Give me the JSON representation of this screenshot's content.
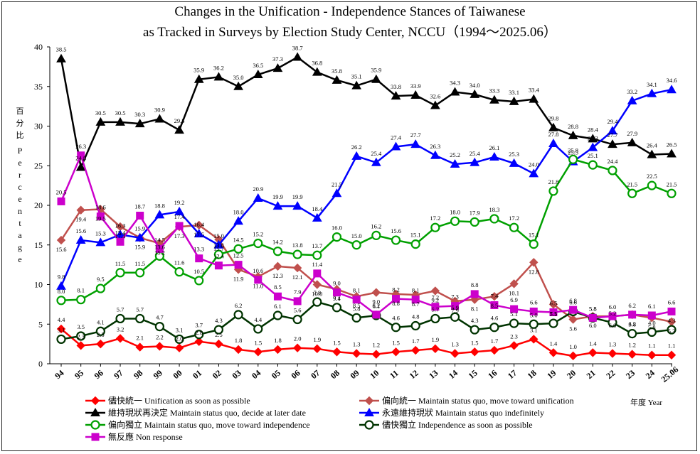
{
  "chart_data": {
    "type": "line",
    "title_line1": "Changes in the Unification - Independence Stances of Taiwanese",
    "title_line2": "as Tracked in Surveys by Election Study Center, NCCU（1994～2025.06）",
    "ylabel_zh": [
      "百",
      "分",
      "比"
    ],
    "ylabel_en": [
      "P",
      "e",
      "r",
      "c",
      "e",
      "n",
      "t",
      "a",
      "g",
      "e"
    ],
    "xlabel": "年度 Year",
    "ylim": [
      0,
      40
    ],
    "yticks": [
      "0",
      "5",
      "10",
      "15",
      "20",
      "25",
      "30",
      "35",
      "40"
    ],
    "categories": [
      "94",
      "95",
      "96",
      "97",
      "98",
      "99",
      "00",
      "01",
      "02",
      "03",
      "04",
      "05",
      "06",
      "07",
      "08",
      "09",
      "10",
      "11",
      "12",
      "13",
      "14",
      "15",
      "16",
      "17",
      "18",
      "19",
      "20",
      "21",
      "22",
      "23",
      "24",
      "25.06"
    ],
    "series": [
      {
        "name": "儘快統一 Unification as soon as possible",
        "color": "#ff0000",
        "marker": "diamond",
        "values": [
          4.4,
          2.3,
          2.5,
          3.2,
          2.1,
          2.2,
          2.0,
          2.8,
          2.5,
          1.8,
          1.5,
          1.8,
          2.0,
          1.9,
          1.5,
          1.3,
          1.2,
          1.5,
          1.7,
          1.9,
          1.3,
          1.5,
          1.7,
          2.3,
          3.1,
          1.4,
          1.0,
          1.4,
          1.3,
          1.2,
          1.1,
          1.1
        ],
        "labels": [
          "4.4",
          "2.3",
          "2.5",
          "3.2",
          "2.1",
          "2.2",
          "2.0",
          "2.8",
          "2.5",
          "1.8",
          "1.5",
          "1.8",
          "2.0",
          "1.9",
          "1.5",
          "1.3",
          "1.2",
          "1.5",
          "1.7",
          "1.9",
          "1.3",
          "1.5",
          "1.7",
          "2.3",
          "3.1",
          "1.4",
          "1.0",
          "1.4",
          "1.3",
          "1.2",
          "1.1",
          "1.1"
        ]
      },
      {
        "name": "偏向統一 Maintain status quo, move toward unification",
        "color": "#c0504d",
        "marker": "diamond",
        "values": [
          15.6,
          19.4,
          19.5,
          17.3,
          15.9,
          15.2,
          17.3,
          17.5,
          15.7,
          11.9,
          11.0,
          12.3,
          12.1,
          10.0,
          9.4,
          8.5,
          9.0,
          8.8,
          8.7,
          9.2,
          7.9,
          8.1,
          8.5,
          10.1,
          12.8,
          7.5,
          5.6,
          6.0,
          6.0,
          6.2,
          5.8,
          5.3
        ],
        "labels": [
          "15.6",
          "19.4",
          "19.5",
          "17.3",
          "15.9",
          "15.2",
          "17.3",
          "17.5",
          "15.7",
          "11.9",
          "11.0",
          "12.3",
          "12.1",
          "10.0",
          "9.4",
          "8.5",
          "9.0",
          "8.8",
          "8.7",
          "9.2",
          "7.9",
          "8.1",
          "8.5",
          "10.1",
          "12.8",
          "7.5",
          "5.6",
          "6.0",
          "6.0",
          "6.2",
          "5.8",
          "5.3"
        ]
      },
      {
        "name": "維持現狀再決定 Maintain status quo, decide at later date",
        "color": "#000000",
        "marker": "triangle",
        "values": [
          38.5,
          24.8,
          30.5,
          30.5,
          30.3,
          30.9,
          29.5,
          35.9,
          36.2,
          35.0,
          36.5,
          37.3,
          38.7,
          36.8,
          35.8,
          35.1,
          35.9,
          33.8,
          33.9,
          32.6,
          34.3,
          34.0,
          33.3,
          33.1,
          33.4,
          29.8,
          28.8,
          28.4,
          27.7,
          27.9,
          26.4,
          26.5
        ],
        "labels": [
          "38.5",
          "24.8",
          "30.5",
          "30.5",
          "30.3",
          "30.9",
          "29.5",
          "35.9",
          "36.2",
          "35.0",
          "36.5",
          "37.3",
          "38.7",
          "36.8",
          "35.8",
          "35.1",
          "35.9",
          "33.8",
          "33.9",
          "32.6",
          "34.3",
          "34.0",
          "33.3",
          "33.1",
          "33.4",
          "29.8",
          "28.8",
          "28.4",
          "27.7",
          "27.9",
          "26.4",
          "26.5"
        ]
      },
      {
        "name": "永遠維持現狀 Maintain status quo indefinitely",
        "color": "#0000ff",
        "marker": "triangle",
        "values": [
          9.8,
          15.6,
          15.3,
          16.3,
          15.9,
          18.8,
          19.2,
          16.4,
          15.0,
          18.0,
          20.9,
          19.9,
          19.9,
          18.4,
          21.5,
          26.2,
          25.4,
          27.4,
          27.7,
          26.3,
          25.2,
          25.4,
          26.1,
          25.3,
          24.0,
          27.8,
          25.5,
          27.3,
          29.4,
          33.2,
          34.1,
          34.6
        ],
        "labels": [
          "9.8",
          "15.6",
          "15.3",
          "16.3",
          "15.9",
          "18.8",
          "19.2",
          "16.4",
          "15.0",
          "18.0",
          "20.9",
          "19.9",
          "19.9",
          "18.4",
          "21.5",
          "26.2",
          "25.4",
          "27.4",
          "27.7",
          "26.3",
          "25.2",
          "25.4",
          "26.1",
          "25.3",
          "24.0",
          "27.8",
          "25.5",
          "27.3",
          "29.4",
          "33.2",
          "34.1",
          "34.6"
        ]
      },
      {
        "name": "偏向獨立 Maintain status quo, move toward independence",
        "color": "#00a000",
        "marker": "circle",
        "values": [
          8.0,
          8.1,
          9.5,
          11.5,
          11.5,
          13.6,
          11.6,
          10.5,
          13.8,
          14.5,
          15.2,
          14.2,
          13.8,
          13.7,
          16.0,
          15.0,
          16.2,
          15.6,
          15.1,
          17.2,
          18.0,
          17.9,
          18.3,
          17.2,
          15.1,
          21.8,
          25.8,
          25.1,
          24.4,
          21.5,
          22.5,
          21.5
        ],
        "labels": [
          "8.0",
          "8.1",
          "9.5",
          "11.5",
          "11.5",
          "13.6",
          "11.6",
          "10.5",
          "13.8",
          "14.5",
          "15.2",
          "14.2",
          "13.8",
          "13.7",
          "16.0",
          "15.0",
          "16.2",
          "15.6",
          "15.1",
          "17.2",
          "18.0",
          "17.9",
          "18.3",
          "17.2",
          "15.1",
          "21.8",
          "25.8",
          "25.1",
          "24.4",
          "21.5",
          "22.5",
          "21.5"
        ]
      },
      {
        "name": "儘快獨立 Independence as soon as possible",
        "color": "#003300",
        "marker": "circle",
        "values": [
          3.1,
          3.5,
          4.1,
          5.7,
          5.7,
          4.7,
          3.1,
          3.7,
          4.3,
          6.2,
          4.4,
          6.1,
          5.6,
          7.8,
          7.1,
          5.8,
          6.1,
          4.6,
          4.8,
          5.7,
          5.9,
          4.3,
          4.6,
          5.1,
          5.0,
          5.1,
          6.6,
          5.8,
          5.2,
          3.8,
          4.0,
          4.3
        ],
        "labels": [
          "3.1",
          "3.5",
          "4.1",
          "5.7",
          "5.7",
          "4.7",
          "3.1",
          "3.7",
          "4.3",
          "6.2",
          "4.4",
          "6.1",
          "5.6",
          "7.8",
          "7.1",
          "5.8",
          "6.1",
          "4.6",
          "4.8",
          "5.7",
          "5.9",
          "4.3",
          "4.6",
          "5.1",
          "5.0",
          "5.1",
          "6.6",
          "5.8",
          "5.2",
          "3.8",
          "4.0",
          "4.3"
        ]
      },
      {
        "name": "無反應 Non response",
        "color": "#cc00cc",
        "marker": "square",
        "values": [
          20.5,
          26.3,
          18.6,
          15.4,
          18.7,
          14.5,
          17.4,
          13.3,
          12.4,
          12.5,
          10.6,
          8.5,
          7.9,
          11.4,
          9.0,
          8.1,
          6.2,
          8.2,
          8.1,
          7.2,
          7.3,
          8.8,
          7.4,
          6.9,
          6.6,
          6.5,
          6.8,
          5.8,
          6.0,
          6.2,
          6.1,
          6.6
        ],
        "labels": [
          "20.5",
          "26.3",
          "18.6",
          "15.4",
          "18.7",
          "14.5",
          "17.4",
          "13.3",
          "12.4",
          "12.5",
          "10.6",
          "8.5",
          "7.9",
          "11.4",
          "9.0",
          "8.1",
          "6.2",
          "8.2",
          "8.1",
          "7.2",
          "7.3",
          "8.8",
          "7.4",
          "6.9",
          "6.6",
          "6.5",
          "6.8",
          "5.8",
          "6.0",
          "6.2",
          "6.1",
          "6.6"
        ]
      }
    ],
    "grid": false,
    "legend": "bottom"
  }
}
